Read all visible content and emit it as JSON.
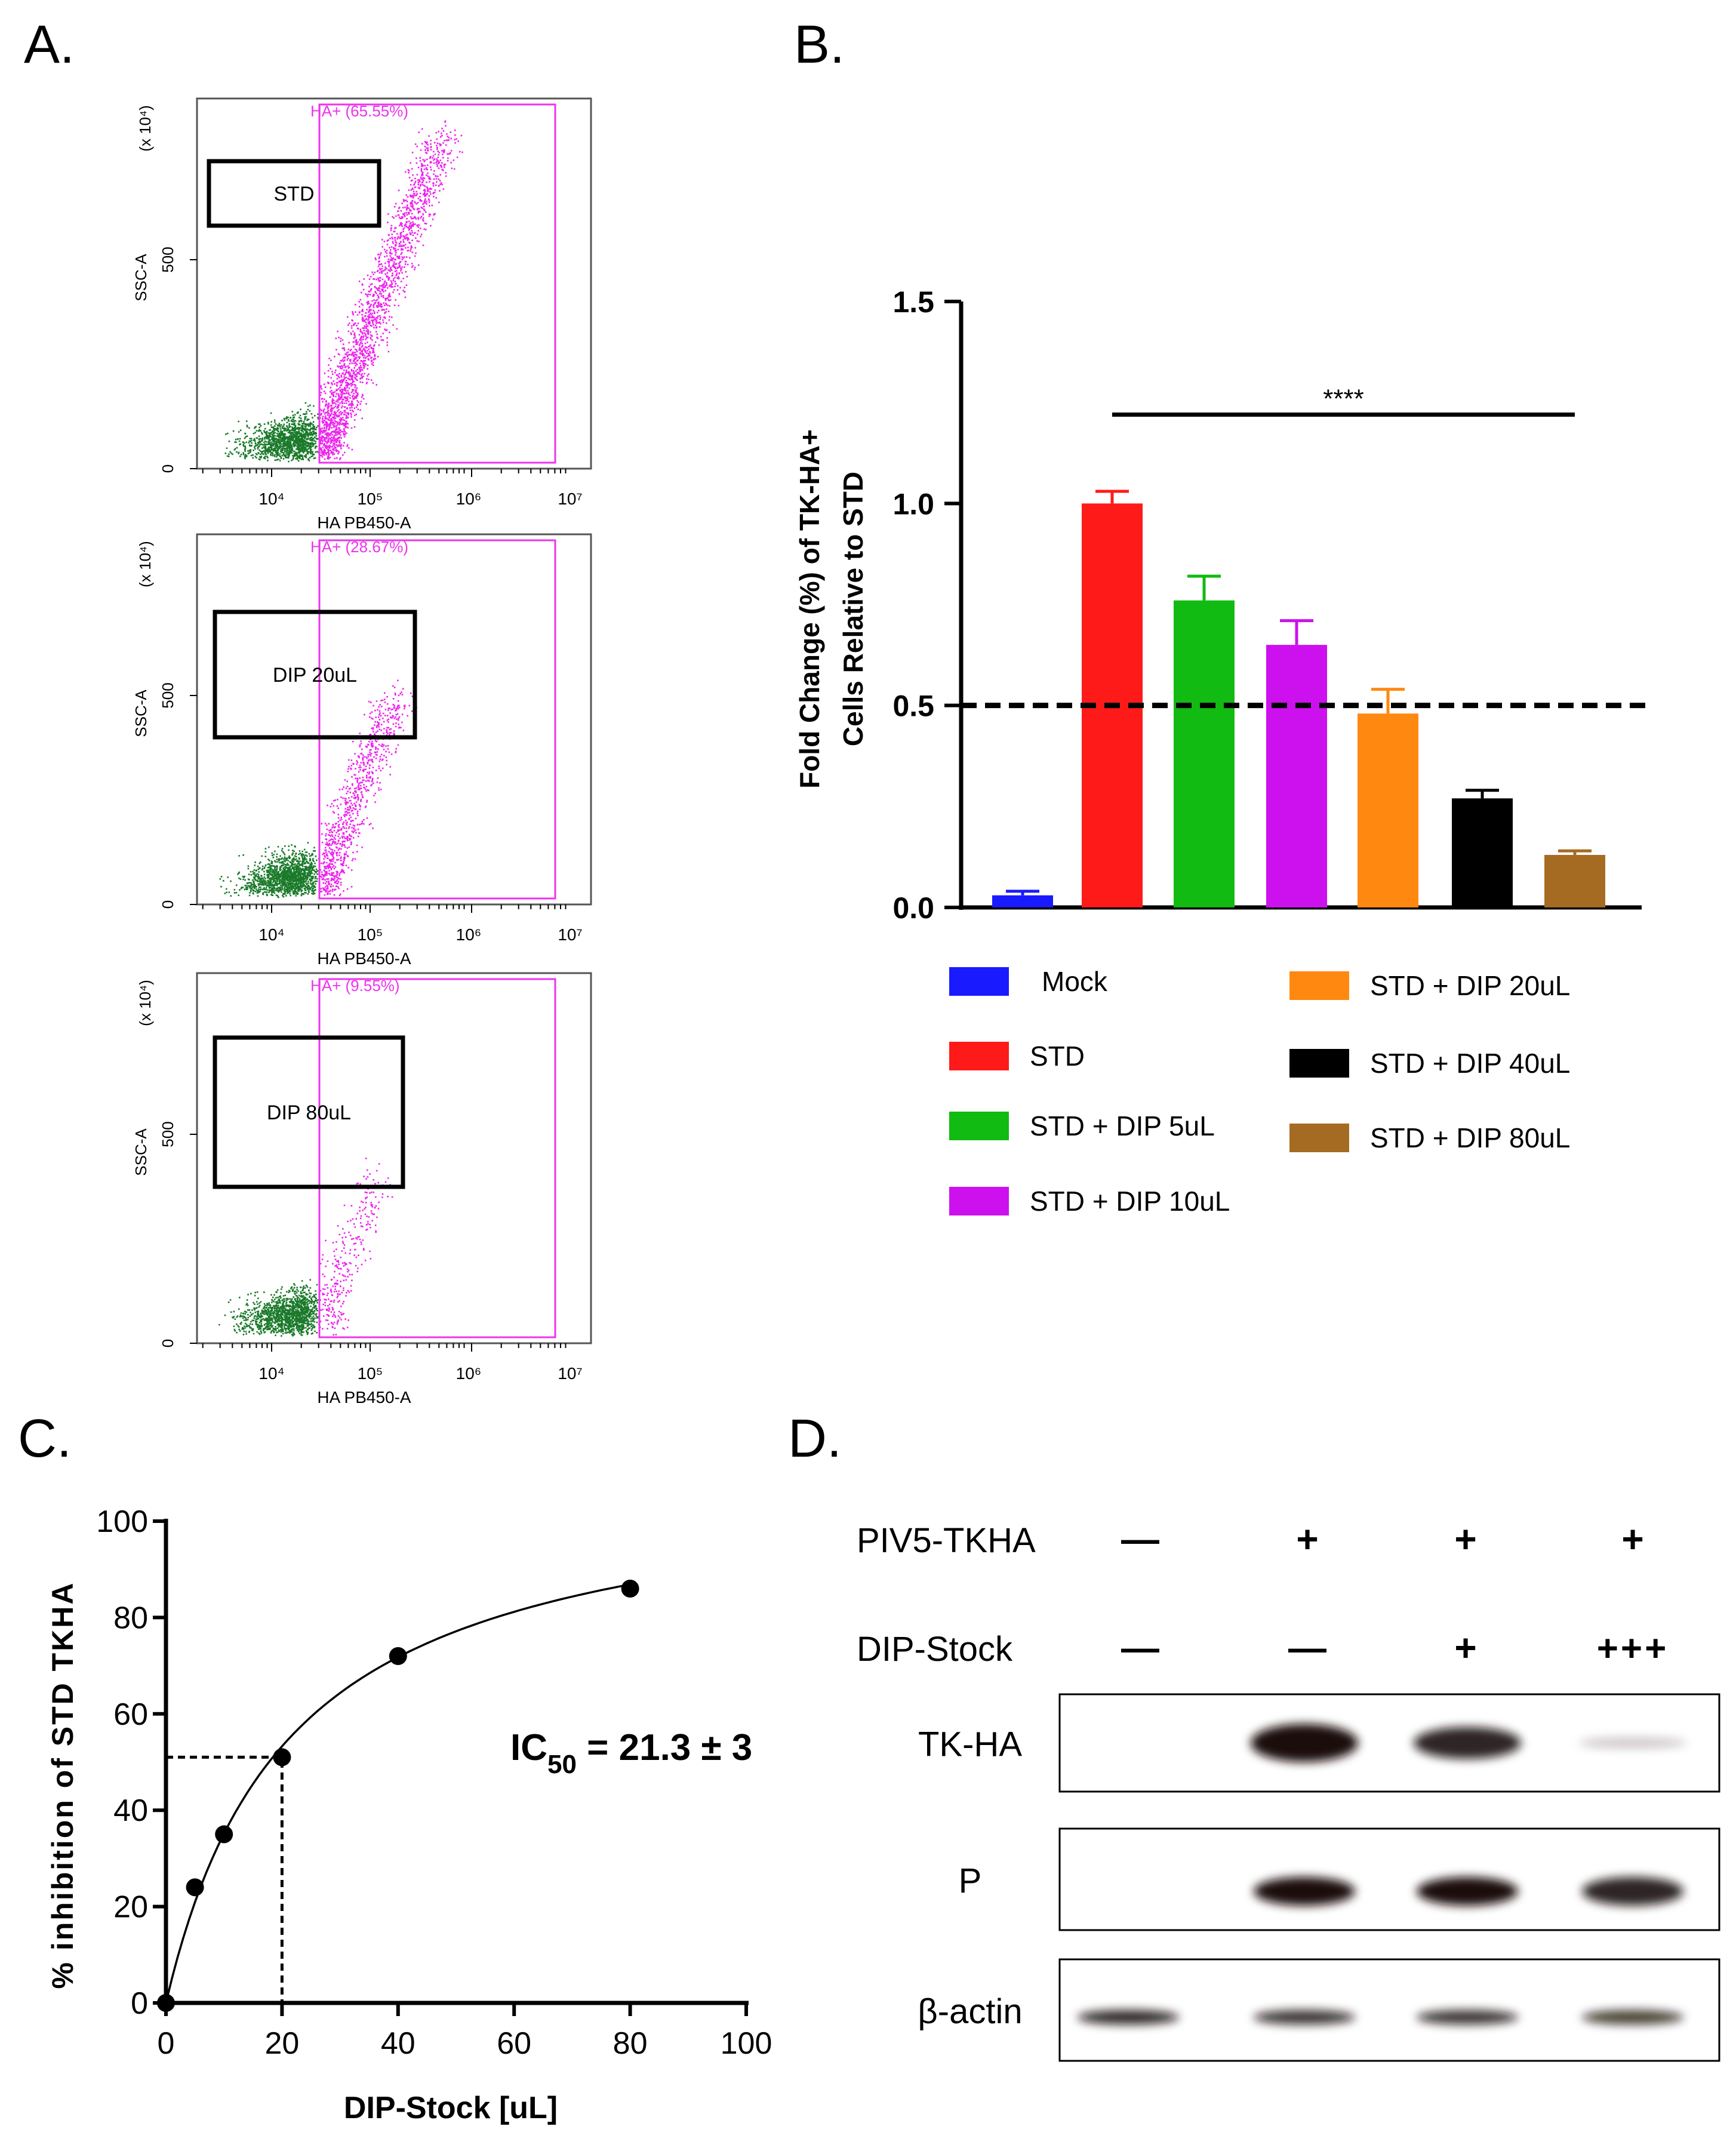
{
  "panels": {
    "a": "A.",
    "b": "B.",
    "c": "C.",
    "d": "D."
  },
  "colors": {
    "gate": "#ee33ee",
    "negative": "#1a7a2a",
    "positive": "#ee22ee",
    "frame": "#555555"
  },
  "flow": {
    "y_axis_label": "SSC-A",
    "x_axis_label": "HA PB450-A",
    "y_multiplier": "(x 10⁴)",
    "y_ticks": [
      "0",
      "500"
    ],
    "x_ticks": [
      "10⁴",
      "10⁵",
      "10⁶",
      "10⁷"
    ],
    "plots": [
      {
        "box_label": "STD",
        "gate_label": "HA+ (65.55%)",
        "positive_pct": 65.55
      },
      {
        "box_label": "DIP 20uL",
        "gate_label": "HA+ (28.67%)",
        "positive_pct": 28.67
      },
      {
        "box_label": "DIP 80uL",
        "gate_label": "HA+ (9.55%)",
        "positive_pct": 9.55
      }
    ]
  },
  "chart_data": [
    {
      "type": "bar",
      "title": "",
      "xlabel": "",
      "ylabel": "Fold Change (%) of TK-HA+ Cells Relative to STD",
      "ylabel_lines": [
        "Fold Change (%) of TK-HA+",
        "Cells Relative to STD"
      ],
      "ylim": [
        0,
        1.5
      ],
      "yticks": [
        "0.0",
        "0.5",
        "1.0",
        "1.5"
      ],
      "ytick_values": [
        0,
        0.5,
        1.0,
        1.5
      ],
      "categories": [
        "Mock",
        "STD",
        "STD + DIP 5uL",
        "STD + DIP 10uL",
        "STD + DIP 20uL",
        "STD + DIP 40uL",
        "STD + DIP 80uL"
      ],
      "values": [
        0.03,
        1.0,
        0.76,
        0.65,
        0.48,
        0.27,
        0.13
      ],
      "errors": [
        0.01,
        0.03,
        0.06,
        0.06,
        0.06,
        0.02,
        0.01
      ],
      "colors": [
        "#1a1aff",
        "#ff1a1a",
        "#11bb11",
        "#cc11ee",
        "#ff8811",
        "#000000",
        "#a66b22"
      ],
      "reference_line": 0.5,
      "significance": {
        "label": "****",
        "y": 1.22,
        "from_index": 1,
        "to_index": 6
      },
      "legend_position": "below"
    },
    {
      "type": "scatter",
      "title": "",
      "xlabel": "DIP-Stock [uL]",
      "ylabel": "% inhibition of  STD TKHA",
      "xlim": [
        0,
        100
      ],
      "ylim": [
        0,
        100
      ],
      "xticks": [
        "0",
        "20",
        "40",
        "60",
        "80",
        "100"
      ],
      "yticks": [
        "0",
        "20",
        "40",
        "60",
        "80",
        "100"
      ],
      "x": [
        0,
        5,
        10,
        20,
        40,
        80
      ],
      "y": [
        0,
        24,
        35,
        51,
        72,
        86
      ],
      "fit": {
        "model": "hyperbolic",
        "ymax": 110,
        "k": 21.3
      },
      "ic50_line": {
        "x": 20,
        "y": 51
      },
      "annotation": {
        "prefix": "IC",
        "sub": "50",
        "suffix": " = 21.3 ± 3"
      }
    }
  ],
  "western": {
    "rows": [
      {
        "label": "PIV5-TKHA",
        "marks": [
          "—",
          "+",
          "+",
          "+"
        ]
      },
      {
        "label": "DIP-Stock",
        "marks": [
          "—",
          "—",
          "+",
          "+++"
        ]
      }
    ],
    "blots": [
      {
        "label": "TK-HA",
        "intensity": [
          0,
          1.0,
          0.8,
          0.12
        ]
      },
      {
        "label": "P",
        "intensity": [
          0,
          1.0,
          0.9,
          0.8
        ]
      },
      {
        "label": "β-actin",
        "intensity": [
          0.8,
          0.75,
          0.75,
          0.7
        ]
      }
    ]
  }
}
